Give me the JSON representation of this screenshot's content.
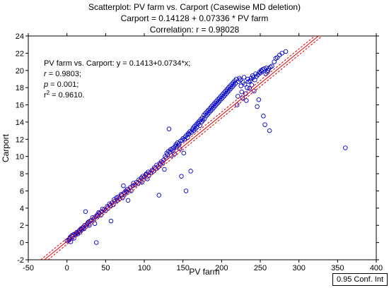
{
  "titles": {
    "line1": "Scatterplot: PV farm vs. Carport (Casewise MD deletion)",
    "line2": "Carport = 0.14128 + 0.07336 * PV farm",
    "line3": "Correlation: r = 0.98028"
  },
  "annotation": {
    "line1": "PV farm vs. Carport: y = 0.1413+0.0734*x;",
    "r_label": "r",
    "r_value": " = 0.9803;",
    "p_label": "p",
    "p_value": " = 0.001;",
    "r2_label": "r",
    "r2_sup": "2",
    "r2_value": " = 0.9610."
  },
  "legend": {
    "label": "0.95 Conf. Int"
  },
  "colors": {
    "points": "#0000cc",
    "fit": "#dd0000",
    "axis": "#000000"
  },
  "chart_data": {
    "type": "scatter",
    "title": "Scatterplot: PV farm vs. Carport (Casewise MD deletion)",
    "xlabel": "PV farm",
    "ylabel": "Carport",
    "xlim": [
      -50,
      400
    ],
    "ylim": [
      -2,
      24
    ],
    "xticks": [
      -50,
      0,
      50,
      100,
      150,
      200,
      250,
      300,
      350,
      400
    ],
    "yticks": [
      -2,
      0,
      2,
      4,
      6,
      8,
      10,
      12,
      14,
      16,
      18,
      20,
      22,
      24
    ],
    "grid": false,
    "fit": {
      "intercept": 0.14128,
      "slope": 0.07336,
      "r": 0.98028,
      "r2": 0.961,
      "p": 0.001,
      "conf_int": 0.95
    },
    "points": [
      [
        0,
        0.2
      ],
      [
        2,
        0.3
      ],
      [
        3,
        0.4
      ],
      [
        4,
        0.6
      ],
      [
        5,
        0.1
      ],
      [
        6,
        0.8
      ],
      [
        7,
        0.7
      ],
      [
        8,
        0.9
      ],
      [
        9,
        0.5
      ],
      [
        10,
        1.0
      ],
      [
        11,
        0.9
      ],
      [
        12,
        1.1
      ],
      [
        13,
        1.2
      ],
      [
        14,
        1.0
      ],
      [
        15,
        1.3
      ],
      [
        16,
        1.4
      ],
      [
        17,
        1.2
      ],
      [
        18,
        1.6
      ],
      [
        19,
        1.5
      ],
      [
        20,
        1.7
      ],
      [
        21,
        1.8
      ],
      [
        22,
        1.6
      ],
      [
        23,
        2.0
      ],
      [
        24,
        3.6
      ],
      [
        25,
        1.9
      ],
      [
        26,
        2.1
      ],
      [
        27,
        2.3
      ],
      [
        28,
        2.4
      ],
      [
        29,
        2.0
      ],
      [
        30,
        2.5
      ],
      [
        32,
        2.6
      ],
      [
        33,
        2.9
      ],
      [
        35,
        2.8
      ],
      [
        36,
        2.2
      ],
      [
        37,
        3.0
      ],
      [
        38,
        0.0
      ],
      [
        39,
        3.2
      ],
      [
        40,
        3.1
      ],
      [
        41,
        3.5
      ],
      [
        42,
        3.4
      ],
      [
        44,
        3.2
      ],
      [
        45,
        3.6
      ],
      [
        46,
        3.9
      ],
      [
        48,
        3.8
      ],
      [
        50,
        3.7
      ],
      [
        52,
        4.2
      ],
      [
        53,
        4.0
      ],
      [
        55,
        4.5
      ],
      [
        56,
        4.3
      ],
      [
        57,
        2.5
      ],
      [
        58,
        4.6
      ],
      [
        60,
        4.4
      ],
      [
        61,
        5.0
      ],
      [
        62,
        4.8
      ],
      [
        64,
        5.2
      ],
      [
        65,
        4.9
      ],
      [
        66,
        5.3
      ],
      [
        68,
        5.1
      ],
      [
        70,
        5.6
      ],
      [
        71,
        5.5
      ],
      [
        72,
        5.2
      ],
      [
        73,
        6.6
      ],
      [
        74,
        5.8
      ],
      [
        75,
        5.7
      ],
      [
        76,
        6.0
      ],
      [
        77,
        5.9
      ],
      [
        78,
        6.2
      ],
      [
        79,
        4.9
      ],
      [
        80,
        6.1
      ],
      [
        82,
        6.4
      ],
      [
        83,
        6.0
      ],
      [
        85,
        6.6
      ],
      [
        86,
        6.9
      ],
      [
        88,
        6.7
      ],
      [
        90,
        7.0
      ],
      [
        92,
        6.9
      ],
      [
        93,
        7.3
      ],
      [
        95,
        7.2
      ],
      [
        96,
        7.5
      ],
      [
        97,
        7.0
      ],
      [
        98,
        7.7
      ],
      [
        100,
        7.6
      ],
      [
        102,
        7.9
      ],
      [
        103,
        8.0
      ],
      [
        104,
        7.4
      ],
      [
        105,
        8.2
      ],
      [
        106,
        7.8
      ],
      [
        108,
        8.1
      ],
      [
        110,
        8.4
      ],
      [
        112,
        8.3
      ],
      [
        113,
        8.7
      ],
      [
        115,
        8.6
      ],
      [
        116,
        9.0
      ],
      [
        118,
        8.8
      ],
      [
        119,
        5.5
      ],
      [
        120,
        9.2
      ],
      [
        121,
        9.1
      ],
      [
        122,
        9.4
      ],
      [
        124,
        9.3
      ],
      [
        125,
        9.6
      ],
      [
        126,
        8.5
      ],
      [
        127,
        10.0
      ],
      [
        128,
        9.8
      ],
      [
        129,
        10.4
      ],
      [
        130,
        10.2
      ],
      [
        131,
        10.6
      ],
      [
        132,
        13.2
      ],
      [
        133,
        10.5
      ],
      [
        134,
        10.8
      ],
      [
        135,
        10.1
      ],
      [
        136,
        10.9
      ],
      [
        137,
        10.7
      ],
      [
        138,
        11.0
      ],
      [
        139,
        10.3
      ],
      [
        140,
        11.2
      ],
      [
        141,
        11.4
      ],
      [
        142,
        11.1
      ],
      [
        143,
        11.6
      ],
      [
        144,
        11.3
      ],
      [
        145,
        11.5
      ],
      [
        146,
        10.9
      ],
      [
        147,
        11.8
      ],
      [
        148,
        7.7
      ],
      [
        149,
        11.9
      ],
      [
        150,
        12.1
      ],
      [
        151,
        10.4
      ],
      [
        152,
        12.0
      ],
      [
        153,
        12.3
      ],
      [
        154,
        6.0
      ],
      [
        155,
        12.5
      ],
      [
        156,
        12.2
      ],
      [
        157,
        12.7
      ],
      [
        158,
        12.6
      ],
      [
        159,
        12.9
      ],
      [
        160,
        8.3
      ],
      [
        161,
        12.8
      ],
      [
        162,
        13.1
      ],
      [
        163,
        13.3
      ],
      [
        164,
        13.0
      ],
      [
        165,
        13.5
      ],
      [
        166,
        13.2
      ],
      [
        167,
        13.7
      ],
      [
        168,
        13.4
      ],
      [
        169,
        13.9
      ],
      [
        170,
        13.8
      ],
      [
        171,
        14.1
      ],
      [
        172,
        13.6
      ],
      [
        173,
        14.3
      ],
      [
        174,
        14.0
      ],
      [
        175,
        14.5
      ],
      [
        176,
        14.2
      ],
      [
        177,
        14.8
      ],
      [
        178,
        14.4
      ],
      [
        179,
        15.0
      ],
      [
        180,
        14.7
      ],
      [
        181,
        15.2
      ],
      [
        182,
        14.9
      ],
      [
        183,
        15.4
      ],
      [
        184,
        15.1
      ],
      [
        185,
        15.6
      ],
      [
        186,
        15.3
      ],
      [
        187,
        15.8
      ],
      [
        188,
        15.5
      ],
      [
        189,
        16.0
      ],
      [
        190,
        15.7
      ],
      [
        191,
        16.2
      ],
      [
        192,
        15.9
      ],
      [
        193,
        16.4
      ],
      [
        194,
        16.1
      ],
      [
        195,
        16.6
      ],
      [
        196,
        16.3
      ],
      [
        197,
        16.8
      ],
      [
        198,
        16.5
      ],
      [
        199,
        17.0
      ],
      [
        200,
        16.7
      ],
      [
        201,
        17.2
      ],
      [
        202,
        16.9
      ],
      [
        203,
        17.4
      ],
      [
        204,
        17.1
      ],
      [
        205,
        17.6
      ],
      [
        206,
        17.3
      ],
      [
        207,
        17.8
      ],
      [
        208,
        17.5
      ],
      [
        209,
        18.0
      ],
      [
        210,
        17.7
      ],
      [
        211,
        18.2
      ],
      [
        212,
        17.9
      ],
      [
        213,
        18.4
      ],
      [
        214,
        18.1
      ],
      [
        215,
        18.6
      ],
      [
        216,
        18.3
      ],
      [
        217,
        18.8
      ],
      [
        218,
        18.5
      ],
      [
        219,
        19.0
      ],
      [
        220,
        16.0
      ],
      [
        221,
        17.0
      ],
      [
        222,
        18.7
      ],
      [
        223,
        19.1
      ],
      [
        224,
        18.9
      ],
      [
        225,
        18.2
      ],
      [
        226,
        17.5
      ],
      [
        227,
        16.8
      ],
      [
        228,
        18.6
      ],
      [
        229,
        19.2
      ],
      [
        230,
        18.4
      ],
      [
        231,
        17.3
      ],
      [
        232,
        16.5
      ],
      [
        233,
        18.0
      ],
      [
        234,
        19.0
      ],
      [
        235,
        18.7
      ],
      [
        236,
        17.9
      ],
      [
        237,
        18.8
      ],
      [
        238,
        19.1
      ],
      [
        239,
        18.3
      ],
      [
        240,
        19.4
      ],
      [
        241,
        19.2
      ],
      [
        242,
        17.6
      ],
      [
        243,
        18.9
      ],
      [
        244,
        19.6
      ],
      [
        245,
        19.3
      ],
      [
        246,
        15.8
      ],
      [
        247,
        19.5
      ],
      [
        248,
        16.6
      ],
      [
        249,
        19.8
      ],
      [
        250,
        19.7
      ],
      [
        251,
        20.0
      ],
      [
        252,
        19.9
      ],
      [
        253,
        20.1
      ],
      [
        254,
        14.7
      ],
      [
        255,
        20.2
      ],
      [
        256,
        13.7
      ],
      [
        257,
        19.6
      ],
      [
        258,
        20.3
      ],
      [
        259,
        19.8
      ],
      [
        260,
        20.0
      ],
      [
        261,
        20.2
      ],
      [
        262,
        13.0
      ],
      [
        263,
        20.4
      ],
      [
        265,
        20.5
      ],
      [
        268,
        21.0
      ],
      [
        270,
        21.4
      ],
      [
        272,
        21.5
      ],
      [
        275,
        21.8
      ],
      [
        278,
        22.0
      ],
      [
        283,
        22.2
      ],
      [
        360,
        11.0
      ]
    ]
  }
}
